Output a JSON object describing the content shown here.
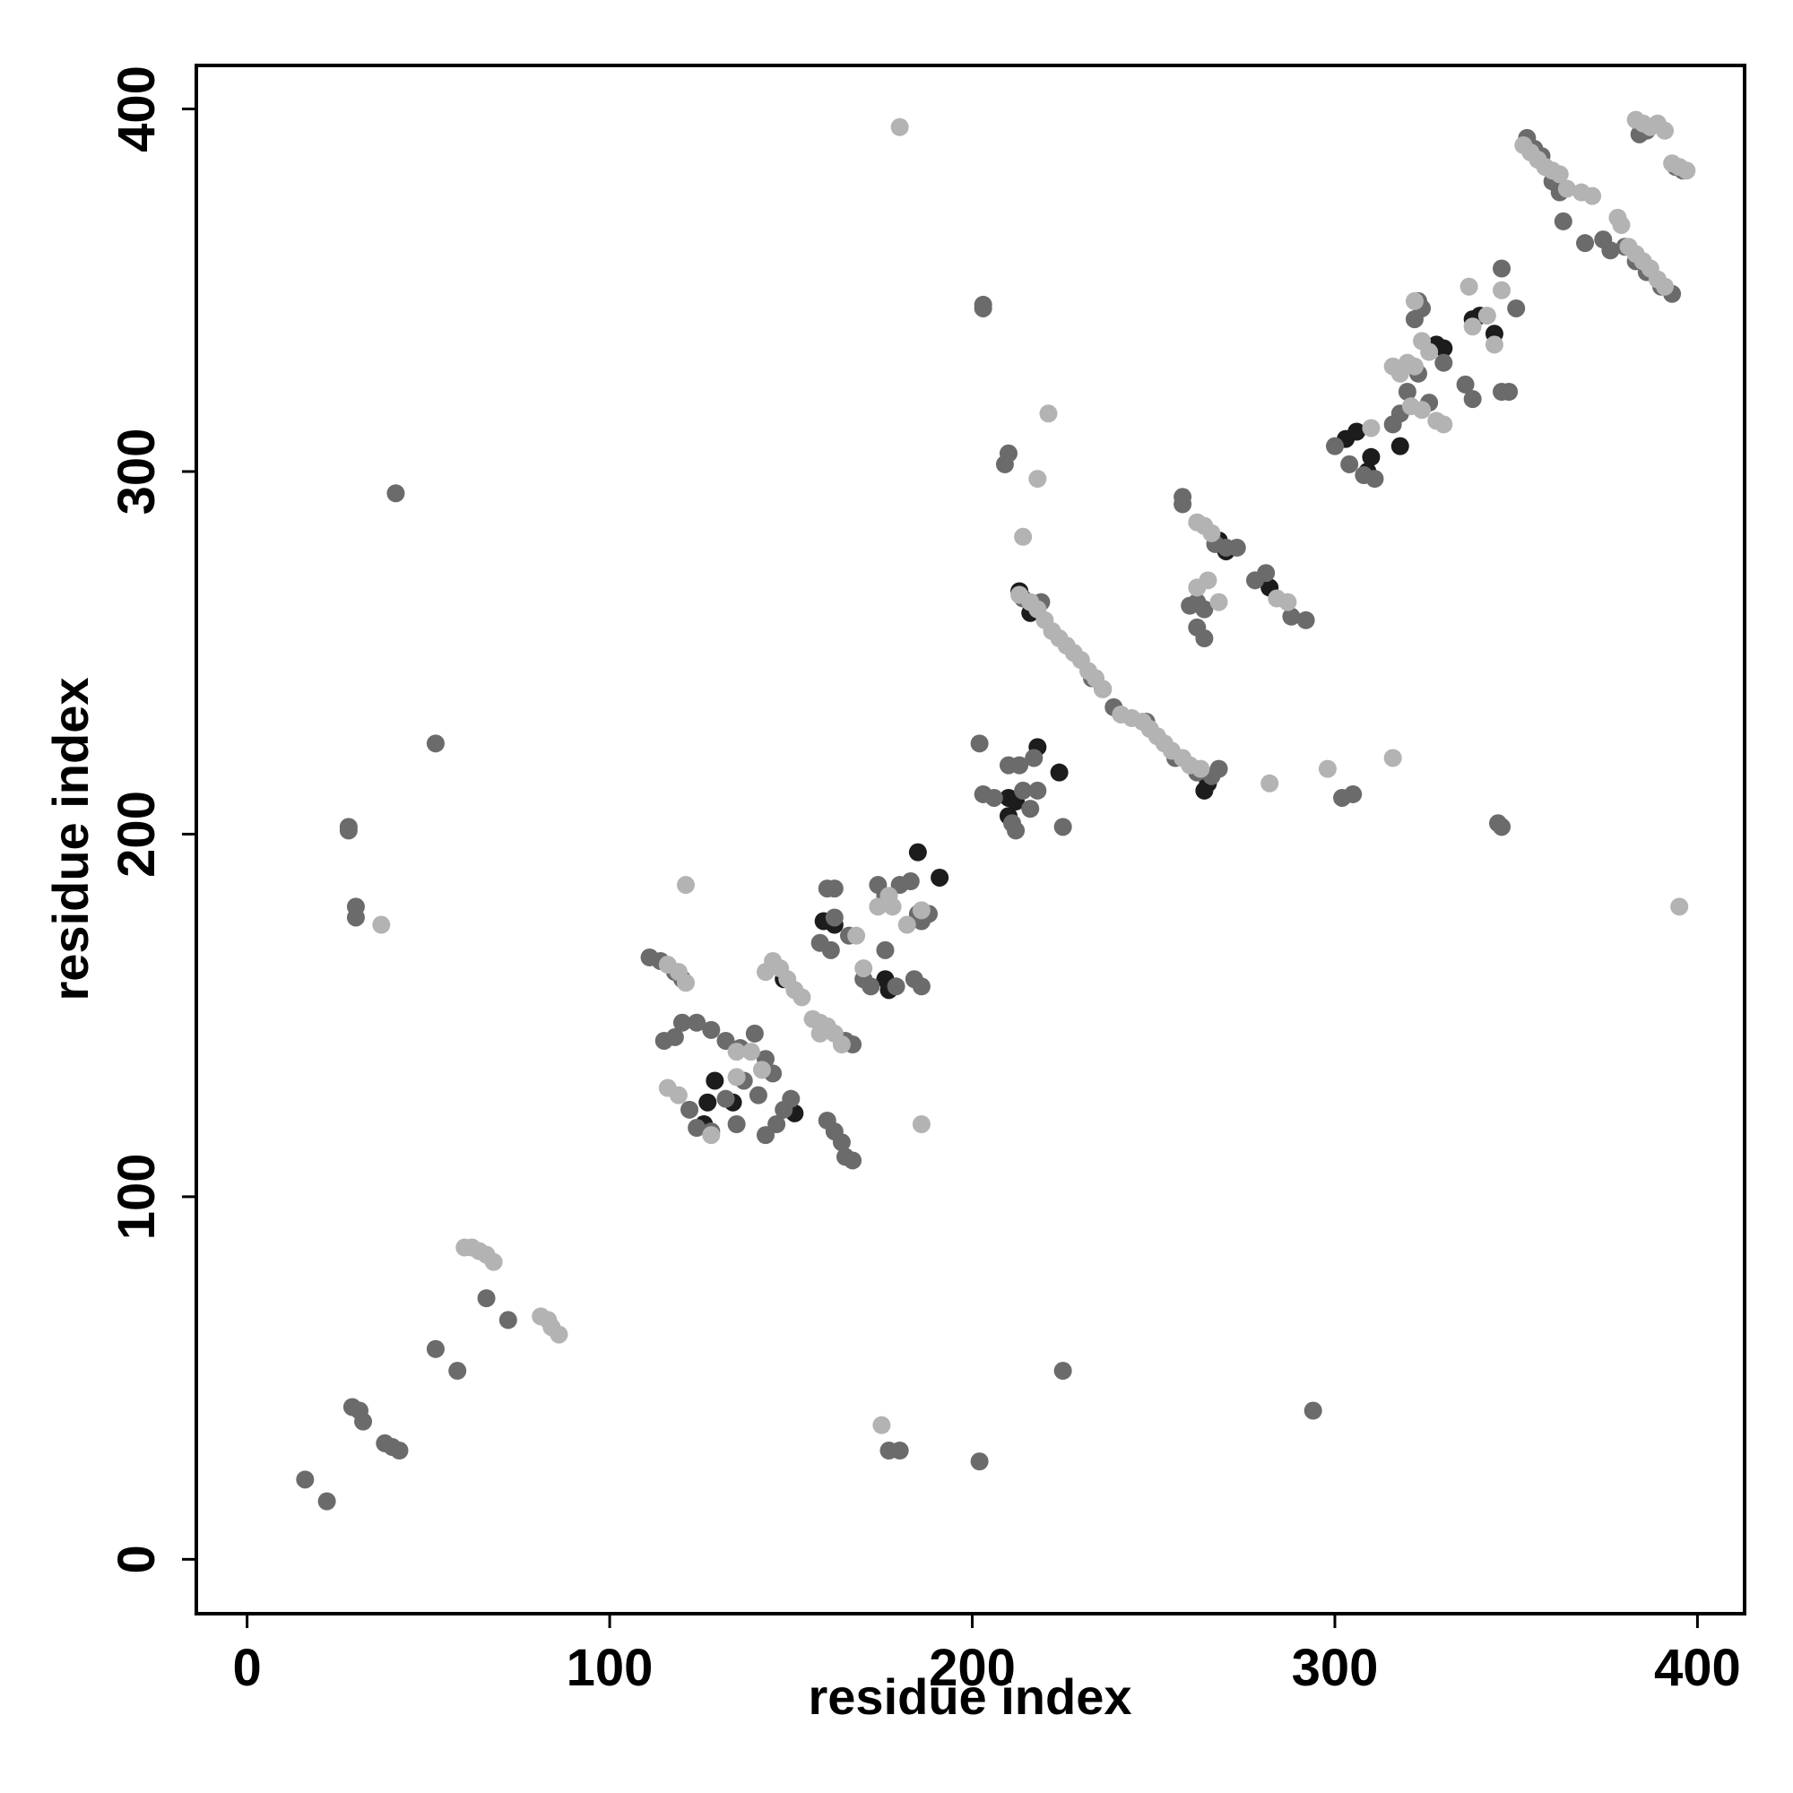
{
  "chart_data": {
    "type": "scatter",
    "x_label": "residue index",
    "y_label": "residue index",
    "xlim": [
      -14,
      413
    ],
    "ylim": [
      -15,
      412
    ],
    "xticks": [
      0,
      100,
      200,
      300,
      400
    ],
    "yticks": [
      0,
      100,
      200,
      300,
      400
    ],
    "series": [
      {
        "color": "#1c1c1c",
        "x": [
          185,
          176,
          177,
          210,
          212,
          218,
          224,
          210,
          268,
          270,
          282,
          306,
          310,
          303,
          328,
          330,
          338,
          340,
          344,
          127,
          126,
          134,
          151,
          159,
          162,
          148,
          213,
          216,
          265,
          264,
          236,
          318,
          309,
          129,
          191
        ],
        "values": [
          195,
          160,
          157,
          210,
          209,
          224,
          217,
          205,
          281,
          278,
          268,
          311,
          304,
          309,
          335,
          334,
          342,
          343,
          338,
          126,
          120,
          126,
          123,
          176,
          175,
          160,
          267,
          261,
          214,
          212,
          240,
          307,
          300,
          132,
          188
        ]
      },
      {
        "color": "#6b6b6b",
        "x": [
          16,
          22,
          29,
          31,
          32,
          38,
          40,
          42,
          41,
          52,
          28,
          28,
          30,
          30,
          52,
          58,
          66,
          72,
          225,
          294,
          177,
          180,
          202,
          203,
          203,
          345,
          346,
          302,
          305,
          363,
          369,
          209,
          210,
          225,
          202,
          111,
          114,
          118,
          120,
          115,
          118,
          120,
          124,
          128,
          132,
          136,
          140,
          143,
          145,
          141,
          143,
          146,
          148,
          150,
          122,
          124,
          128,
          132,
          135,
          137,
          160,
          162,
          158,
          161,
          166,
          162,
          174,
          176,
          180,
          183,
          185,
          186,
          188,
          184,
          186,
          170,
          172,
          179,
          176,
          165,
          167,
          162,
          160,
          164,
          165,
          167,
          203,
          206,
          210,
          214,
          216,
          218,
          211,
          212,
          213,
          217,
          262,
          260,
          264,
          264,
          262,
          270,
          267,
          273,
          278,
          281,
          288,
          292,
          258,
          258,
          248,
          256,
          262,
          266,
          268,
          214,
          219,
          233,
          239,
          300,
          304,
          308,
          311,
          316,
          318,
          320,
          323,
          326,
          323,
          324,
          322,
          330,
          336,
          338,
          346,
          348,
          346,
          350,
          353,
          355,
          357,
          360,
          362,
          374,
          376,
          380,
          383,
          386,
          390,
          393,
          384,
          386,
          394,
          396
        ],
        "values": [
          22,
          16,
          42,
          41,
          38,
          32,
          31,
          30,
          294,
          225,
          202,
          201,
          180,
          177,
          58,
          52,
          72,
          66,
          52,
          41,
          30,
          30,
          27,
          346,
          345,
          203,
          202,
          210,
          211,
          369,
          363,
          302,
          305,
          202,
          225,
          166,
          165,
          162,
          160,
          143,
          144,
          148,
          148,
          146,
          143,
          141,
          145,
          138,
          134,
          128,
          117,
          120,
          124,
          127,
          124,
          119,
          118,
          127,
          120,
          132,
          185,
          185,
          170,
          168,
          172,
          177,
          186,
          183,
          186,
          187,
          178,
          176,
          178,
          160,
          158,
          160,
          158,
          158,
          168,
          111,
          110,
          118,
          121,
          115,
          143,
          142,
          211,
          210,
          219,
          212,
          207,
          212,
          203,
          201,
          219,
          221,
          264,
          263,
          262,
          254,
          257,
          279,
          280,
          279,
          270,
          272,
          260,
          259,
          293,
          291,
          231,
          221,
          217,
          216,
          218,
          265,
          264,
          243,
          235,
          307,
          302,
          299,
          298,
          313,
          316,
          322,
          327,
          319,
          347,
          345,
          342,
          330,
          324,
          320,
          322,
          322,
          356,
          345,
          392,
          389,
          387,
          380,
          377,
          364,
          361,
          362,
          358,
          355,
          351,
          349,
          393,
          394,
          384,
          383
        ]
      },
      {
        "color": "#b3b3b3",
        "x": [
          60,
          62,
          64,
          66,
          68,
          81,
          83,
          84,
          86,
          121,
          186,
          37,
          175,
          180,
          395,
          221,
          218,
          214,
          298,
          316,
          282,
          116,
          119,
          121,
          116,
          119,
          128,
          145,
          147,
          149,
          151,
          153,
          143,
          156,
          158,
          160,
          162,
          164,
          158,
          135,
          139,
          142,
          135,
          168,
          170,
          174,
          177,
          178,
          182,
          186,
          213,
          216,
          218,
          220,
          222,
          224,
          226,
          228,
          230,
          232,
          234,
          236,
          241,
          244,
          247,
          249,
          251,
          253,
          255,
          258,
          260,
          263,
          264,
          266,
          262,
          265,
          262,
          268,
          284,
          287,
          310,
          316,
          318,
          320,
          322,
          324,
          326,
          322,
          321,
          324,
          328,
          330,
          337,
          338,
          342,
          344,
          346,
          352,
          354,
          356,
          358,
          360,
          362,
          364,
          368,
          371,
          378,
          379,
          381,
          383,
          385,
          387,
          389,
          391,
          383,
          385,
          387,
          389,
          391,
          393,
          395,
          397
        ],
        "values": [
          86,
          86,
          85,
          84,
          82,
          67,
          66,
          64,
          62,
          186,
          120,
          175,
          37,
          395,
          180,
          316,
          298,
          282,
          218,
          221,
          214,
          164,
          162,
          159,
          130,
          128,
          117,
          165,
          163,
          160,
          157,
          155,
          162,
          149,
          148,
          147,
          145,
          142,
          145,
          140,
          140,
          135,
          133,
          172,
          163,
          180,
          183,
          180,
          175,
          179,
          266,
          264,
          262,
          259,
          256,
          254,
          252,
          250,
          248,
          245,
          243,
          240,
          233,
          232,
          231,
          229,
          227,
          225,
          223,
          221,
          219,
          218,
          285,
          283,
          286,
          270,
          268,
          264,
          265,
          264,
          312,
          329,
          327,
          330,
          329,
          336,
          333,
          347,
          318,
          317,
          314,
          313,
          351,
          340,
          343,
          335,
          350,
          390,
          388,
          386,
          384,
          383,
          382,
          378,
          377,
          376,
          370,
          368,
          362,
          360,
          358,
          356,
          353,
          351,
          397,
          396,
          395,
          396,
          394,
          385,
          384,
          383
        ]
      }
    ]
  }
}
